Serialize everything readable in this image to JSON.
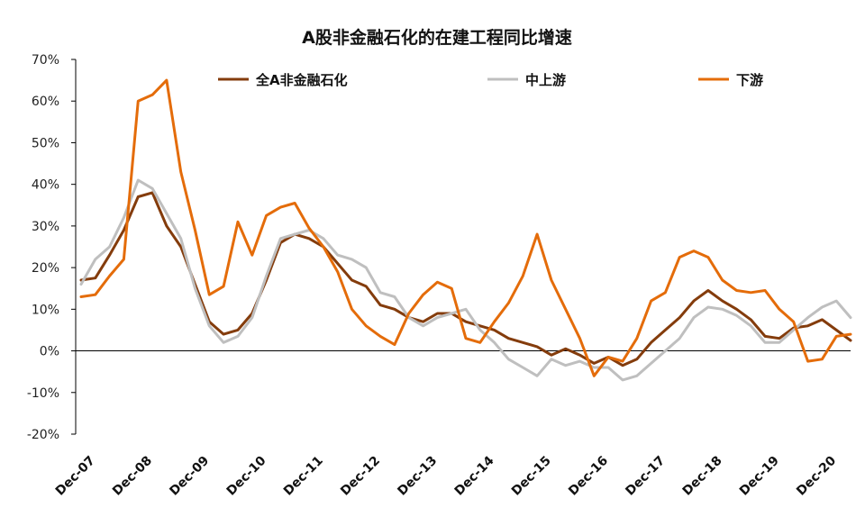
{
  "chart_data": {
    "type": "line",
    "title": "A股非金融石化的在建工程同比增速",
    "xlabel": "",
    "ylabel": "",
    "ylim": [
      -20,
      70
    ],
    "yticks": [
      -20,
      -10,
      0,
      10,
      20,
      30,
      40,
      50,
      60,
      70
    ],
    "ytick_labels": [
      "-20%",
      "-10%",
      "0%",
      "10%",
      "20%",
      "30%",
      "40%",
      "50%",
      "60%",
      "70%"
    ],
    "x": [
      "Dec-07",
      "Mar-08",
      "Jun-08",
      "Sep-08",
      "Dec-08",
      "Mar-09",
      "Jun-09",
      "Sep-09",
      "Dec-09",
      "Mar-10",
      "Jun-10",
      "Sep-10",
      "Dec-10",
      "Mar-11",
      "Jun-11",
      "Sep-11",
      "Dec-11",
      "Mar-12",
      "Jun-12",
      "Sep-12",
      "Dec-12",
      "Mar-13",
      "Jun-13",
      "Sep-13",
      "Dec-13",
      "Mar-14",
      "Jun-14",
      "Sep-14",
      "Dec-14",
      "Mar-15",
      "Jun-15",
      "Sep-15",
      "Dec-15",
      "Mar-16",
      "Jun-16",
      "Sep-16",
      "Dec-16",
      "Mar-17",
      "Jun-17",
      "Sep-17",
      "Dec-17",
      "Mar-18",
      "Jun-18",
      "Sep-18",
      "Dec-18",
      "Mar-19",
      "Jun-19",
      "Sep-19",
      "Dec-19",
      "Mar-20",
      "Jun-20",
      "Sep-20",
      "Dec-20",
      "Mar-21",
      "Jun-21"
    ],
    "xtick_labels": [
      "Dec-07",
      "Dec-08",
      "Dec-09",
      "Dec-10",
      "Dec-11",
      "Dec-12",
      "Dec-13",
      "Dec-14",
      "Dec-15",
      "Dec-16",
      "Dec-17",
      "Dec-18",
      "Dec-19",
      "Dec-20"
    ],
    "legend_position": "top",
    "series": [
      {
        "name": "全A非金融石化",
        "color": "#843C0C",
        "values": [
          17,
          17.5,
          23,
          29,
          37,
          38,
          30,
          25,
          16,
          7,
          4,
          5,
          9,
          17,
          26,
          28,
          27,
          25,
          21,
          17,
          15.5,
          11,
          10,
          8,
          7,
          9,
          9,
          7,
          6,
          5,
          3,
          2,
          1,
          -1,
          0.5,
          -1,
          -3,
          -1.5,
          -3.5,
          -2,
          2,
          5,
          8,
          12,
          14.5,
          12,
          10,
          7.5,
          3.5,
          3,
          5.5,
          6,
          7.5,
          5,
          2.5
        ]
      },
      {
        "name": "中上游",
        "color": "#BFBFBF",
        "values": [
          16,
          22,
          25,
          32,
          41,
          39,
          33,
          27,
          15,
          6,
          2,
          3.5,
          8,
          18,
          27,
          28,
          29,
          27,
          23,
          22,
          20,
          14,
          13,
          8,
          6,
          8,
          9,
          10,
          5,
          2,
          -2,
          -4,
          -6,
          -2,
          -3.5,
          -2.5,
          -4,
          -4,
          -7,
          -6,
          -3,
          0,
          3,
          8,
          10.5,
          10,
          8.5,
          6,
          2,
          2,
          5,
          8,
          10.5,
          12,
          8
        ]
      },
      {
        "name": "下游",
        "color": "#E46C0A",
        "values": [
          13,
          13.5,
          18,
          22,
          60,
          61.5,
          65,
          43,
          29,
          13.5,
          15.5,
          31,
          23,
          32.5,
          34.5,
          35.5,
          29.5,
          25,
          19,
          10,
          6,
          3.5,
          1.5,
          9,
          13.5,
          16.5,
          15,
          3,
          2,
          7,
          11.5,
          18,
          28,
          17,
          10,
          3,
          -6,
          -1.5,
          -2.5,
          3,
          12,
          14,
          22.5,
          24,
          22.5,
          17,
          14.5,
          14,
          14.5,
          10,
          7,
          -2.5,
          -2,
          3.5,
          4
        ]
      }
    ]
  }
}
